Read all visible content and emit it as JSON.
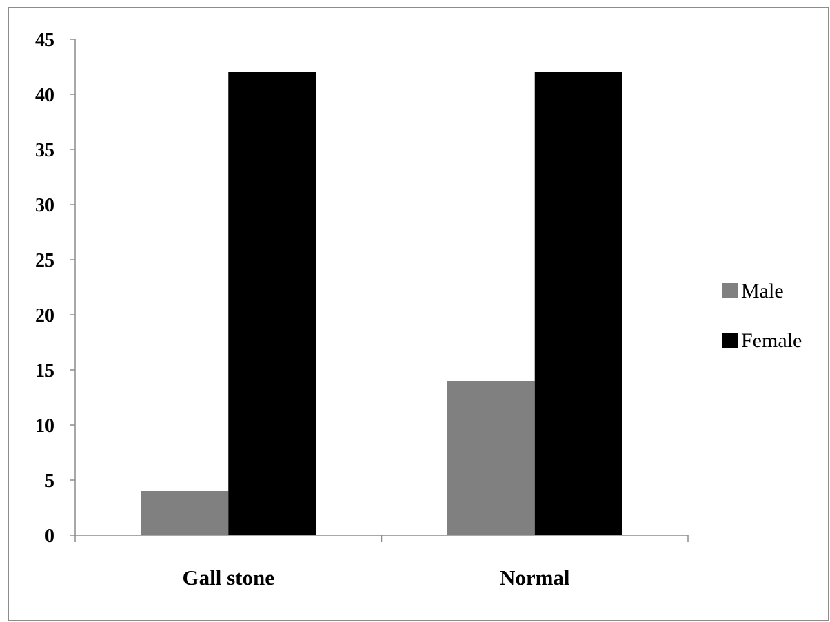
{
  "chart_data": {
    "type": "bar",
    "title": "",
    "xlabel": "",
    "ylabel": "",
    "categories": [
      "Gall stone",
      "Normal"
    ],
    "series": [
      {
        "name": "Male",
        "values": [
          4,
          14
        ],
        "color": "#808080"
      },
      {
        "name": "Female",
        "values": [
          42,
          42
        ],
        "color": "#000000"
      }
    ],
    "ylim": [
      0,
      45
    ],
    "yticks": [
      "0",
      "5",
      "10",
      "15",
      "20",
      "25",
      "30",
      "35",
      "40",
      "45"
    ],
    "grid": false,
    "legend": "right"
  }
}
